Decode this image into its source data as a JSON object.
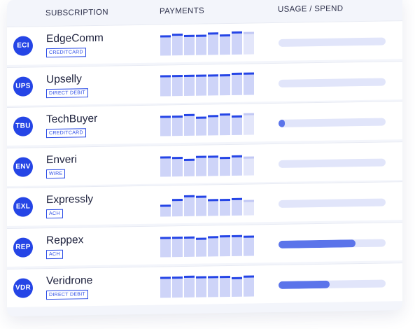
{
  "header": {
    "subscription_label": "SUBSCRIPTION",
    "payments_label": "PAYMENTS",
    "usage_label": "USAGE / SPEND"
  },
  "colors": {
    "accent": "#2545e6",
    "bar_fill": "#ced4f8",
    "bar_pending": "#e3e6fa",
    "usage_track": "#e1e5fa",
    "usage_fill": "#5b74ea",
    "card_bg": "#f3f5fb"
  },
  "rows": [
    {
      "abbr": "ECI",
      "name": "EdgeComm",
      "method": "CREDITCARD",
      "payments": [
        0.8,
        0.86,
        0.8,
        0.8,
        0.88,
        0.8,
        0.92,
        0.9
      ],
      "pending": [
        false,
        false,
        false,
        false,
        false,
        false,
        false,
        true
      ],
      "usage": 0.0
    },
    {
      "abbr": "UPS",
      "name": "Upselly",
      "method": "DIRECT DEBIT",
      "payments": [
        0.82,
        0.82,
        0.82,
        0.82,
        0.82,
        0.82,
        0.9,
        0.88
      ],
      "pending": [
        false,
        false,
        false,
        false,
        false,
        false,
        false,
        false
      ],
      "usage": 0.0
    },
    {
      "abbr": "TBU",
      "name": "TechBuyer",
      "method": "CREDITCARD",
      "payments": [
        0.8,
        0.8,
        0.86,
        0.74,
        0.8,
        0.86,
        0.78,
        0.86
      ],
      "pending": [
        false,
        false,
        false,
        false,
        false,
        false,
        false,
        true
      ],
      "usage": 0.06
    },
    {
      "abbr": "ENV",
      "name": "Enveri",
      "method": "WIRE",
      "payments": [
        0.8,
        0.78,
        0.7,
        0.8,
        0.8,
        0.74,
        0.8,
        0.76
      ],
      "pending": [
        false,
        false,
        false,
        false,
        false,
        false,
        false,
        true
      ],
      "usage": 0.0
    },
    {
      "abbr": "EXL",
      "name": "Expressly",
      "method": "ACH",
      "payments": [
        0.48,
        0.7,
        0.82,
        0.8,
        0.66,
        0.66,
        0.7,
        0.6
      ],
      "pending": [
        false,
        false,
        false,
        false,
        false,
        false,
        false,
        true
      ],
      "usage": 0.0
    },
    {
      "abbr": "REP",
      "name": "Reppex",
      "method": "ACH",
      "payments": [
        0.8,
        0.8,
        0.8,
        0.76,
        0.8,
        0.82,
        0.82,
        0.8
      ],
      "pending": [
        false,
        false,
        false,
        false,
        false,
        false,
        false,
        false
      ],
      "usage": 0.72
    },
    {
      "abbr": "VDR",
      "name": "Veridrone",
      "method": "DIRECT DEBIT",
      "payments": [
        0.84,
        0.84,
        0.86,
        0.84,
        0.84,
        0.84,
        0.78,
        0.82
      ],
      "pending": [
        false,
        false,
        false,
        false,
        false,
        false,
        false,
        false
      ],
      "usage": 0.48
    }
  ]
}
